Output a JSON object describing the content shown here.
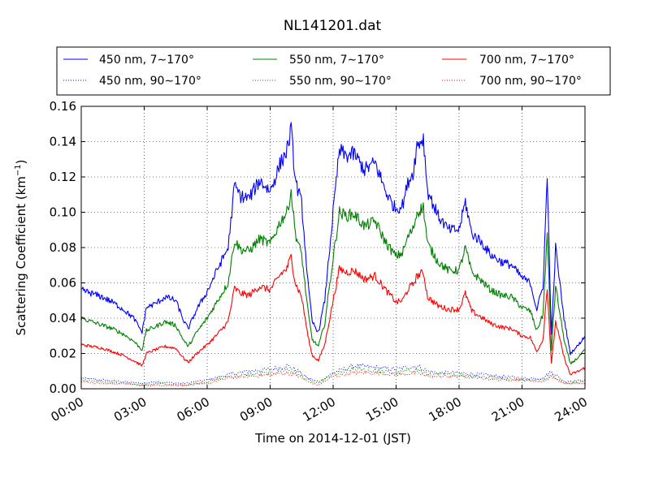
{
  "chart_data": {
    "type": "line",
    "title": "NL141201.dat",
    "xlabel": "Time on 2014-12-01 (JST)",
    "ylabel": "Scattering Coefficient (km",
    "ylabel_exp": "−1",
    "ylabel_close": ")",
    "xlim": [
      0,
      24
    ],
    "ylim": [
      0,
      0.16
    ],
    "grid": true,
    "legend_position": "top",
    "x_ticks": [
      0,
      3,
      6,
      9,
      12,
      15,
      18,
      21,
      24
    ],
    "x_tick_labels": [
      "00:00",
      "03:00",
      "06:00",
      "09:00",
      "12:00",
      "15:00",
      "18:00",
      "21:00",
      "24:00"
    ],
    "y_ticks": [
      0,
      0.02,
      0.04,
      0.06,
      0.08,
      0.1,
      0.12,
      0.14,
      0.16
    ],
    "y_tick_labels": [
      "0.00",
      "0.02",
      "0.04",
      "0.06",
      "0.08",
      "0.10",
      "0.12",
      "0.14",
      "0.16"
    ],
    "series": [
      {
        "name": "450 nm, 7∼170°",
        "color": "#0000ff",
        "style": "solid",
        "x": [
          0,
          0.5,
          1,
          1.5,
          2,
          2.5,
          2.9,
          3.1,
          3.5,
          4,
          4.5,
          4.9,
          5.1,
          5.5,
          6,
          6.5,
          7,
          7.3,
          7.6,
          8,
          8.5,
          9,
          9.5,
          9.8,
          10,
          10.2,
          10.5,
          10.8,
          11,
          11.3,
          11.6,
          12,
          12.3,
          12.6,
          13,
          13.5,
          14,
          14.5,
          14.8,
          15,
          15.3,
          15.6,
          15.8,
          16,
          16.3,
          16.5,
          17,
          17.5,
          18,
          18.3,
          18.6,
          19,
          19.5,
          20,
          20.5,
          21,
          21.4,
          21.7,
          22,
          22.2,
          22.4,
          22.6,
          23,
          23.3,
          23.7,
          24
        ],
        "y": [
          0.056,
          0.054,
          0.052,
          0.049,
          0.045,
          0.04,
          0.032,
          0.046,
          0.048,
          0.052,
          0.05,
          0.038,
          0.034,
          0.045,
          0.055,
          0.068,
          0.08,
          0.115,
          0.109,
          0.108,
          0.118,
          0.112,
          0.128,
          0.135,
          0.147,
          0.118,
          0.105,
          0.06,
          0.038,
          0.032,
          0.05,
          0.1,
          0.135,
          0.132,
          0.133,
          0.124,
          0.128,
          0.112,
          0.105,
          0.102,
          0.104,
          0.118,
          0.122,
          0.138,
          0.142,
          0.112,
          0.098,
          0.09,
          0.09,
          0.106,
          0.088,
          0.084,
          0.076,
          0.072,
          0.07,
          0.063,
          0.06,
          0.045,
          0.058,
          0.12,
          0.03,
          0.08,
          0.04,
          0.02,
          0.025,
          0.03
        ]
      },
      {
        "name": "550 nm, 7∼170°",
        "color": "#008000",
        "style": "solid",
        "x": [
          0,
          0.5,
          1,
          1.5,
          2,
          2.5,
          2.9,
          3.1,
          3.5,
          4,
          4.5,
          4.9,
          5.1,
          5.5,
          6,
          6.5,
          7,
          7.3,
          7.6,
          8,
          8.5,
          9,
          9.5,
          9.8,
          10,
          10.2,
          10.5,
          10.8,
          11,
          11.3,
          11.6,
          12,
          12.3,
          12.6,
          13,
          13.5,
          14,
          14.5,
          14.8,
          15,
          15.3,
          15.6,
          15.8,
          16,
          16.3,
          16.5,
          17,
          17.5,
          18,
          18.3,
          18.6,
          19,
          19.5,
          20,
          20.5,
          21,
          21.4,
          21.7,
          22,
          22.2,
          22.4,
          22.6,
          23,
          23.3,
          23.7,
          24
        ],
        "y": [
          0.04,
          0.038,
          0.036,
          0.034,
          0.031,
          0.027,
          0.022,
          0.033,
          0.035,
          0.038,
          0.036,
          0.027,
          0.024,
          0.032,
          0.04,
          0.05,
          0.06,
          0.084,
          0.079,
          0.078,
          0.085,
          0.082,
          0.095,
          0.1,
          0.112,
          0.088,
          0.076,
          0.044,
          0.028,
          0.024,
          0.037,
          0.074,
          0.1,
          0.098,
          0.099,
          0.092,
          0.095,
          0.083,
          0.078,
          0.075,
          0.077,
          0.087,
          0.09,
          0.1,
          0.103,
          0.082,
          0.072,
          0.067,
          0.067,
          0.08,
          0.066,
          0.062,
          0.056,
          0.053,
          0.052,
          0.046,
          0.044,
          0.033,
          0.042,
          0.088,
          0.022,
          0.058,
          0.028,
          0.014,
          0.018,
          0.022
        ]
      },
      {
        "name": "700 nm, 7∼170°",
        "color": "#ff0000",
        "style": "solid",
        "x": [
          0,
          0.5,
          1,
          1.5,
          2,
          2.5,
          2.9,
          3.1,
          3.5,
          4,
          4.5,
          4.9,
          5.1,
          5.5,
          6,
          6.5,
          7,
          7.3,
          7.6,
          8,
          8.5,
          9,
          9.5,
          9.8,
          10,
          10.2,
          10.5,
          10.8,
          11,
          11.3,
          11.6,
          12,
          12.3,
          12.6,
          13,
          13.5,
          14,
          14.5,
          14.8,
          15,
          15.3,
          15.6,
          15.8,
          16,
          16.3,
          16.5,
          17,
          17.5,
          18,
          18.3,
          18.6,
          19,
          19.5,
          20,
          20.5,
          21,
          21.4,
          21.7,
          22,
          22.2,
          22.4,
          22.6,
          23,
          23.3,
          23.7,
          24
        ],
        "y": [
          0.025,
          0.024,
          0.023,
          0.021,
          0.019,
          0.016,
          0.013,
          0.02,
          0.022,
          0.024,
          0.023,
          0.017,
          0.015,
          0.02,
          0.025,
          0.031,
          0.038,
          0.057,
          0.054,
          0.053,
          0.058,
          0.056,
          0.065,
          0.068,
          0.075,
          0.06,
          0.052,
          0.03,
          0.019,
          0.016,
          0.025,
          0.05,
          0.068,
          0.066,
          0.067,
          0.062,
          0.064,
          0.056,
          0.052,
          0.049,
          0.05,
          0.057,
          0.059,
          0.064,
          0.066,
          0.052,
          0.047,
          0.045,
          0.045,
          0.054,
          0.044,
          0.041,
          0.037,
          0.035,
          0.034,
          0.03,
          0.029,
          0.021,
          0.028,
          0.058,
          0.014,
          0.038,
          0.018,
          0.008,
          0.01,
          0.012
        ]
      },
      {
        "name": "450 nm, 90∼170°",
        "color": "#0000ff",
        "style": "dotted",
        "x": [
          0,
          1,
          2,
          2.9,
          3.5,
          4.9,
          6,
          7,
          8,
          9,
          9.8,
          10.2,
          10.8,
          11.3,
          12,
          13,
          14,
          15,
          16,
          16.5,
          17,
          18,
          19,
          20,
          21,
          22,
          22.4,
          23,
          24
        ],
        "y": [
          0.006,
          0.005,
          0.004,
          0.003,
          0.004,
          0.003,
          0.005,
          0.008,
          0.01,
          0.011,
          0.013,
          0.011,
          0.006,
          0.004,
          0.009,
          0.013,
          0.012,
          0.011,
          0.013,
          0.01,
          0.009,
          0.009,
          0.008,
          0.007,
          0.006,
          0.006,
          0.01,
          0.004,
          0.005
        ]
      },
      {
        "name": "550 nm, 90∼170°",
        "color": "#008000",
        "style": "dotted",
        "x": [
          0,
          1,
          2,
          2.9,
          3.5,
          4.9,
          6,
          7,
          8,
          9,
          9.8,
          10.2,
          10.8,
          11.3,
          12,
          13,
          14,
          15,
          16,
          16.5,
          17,
          18,
          19,
          20,
          21,
          22,
          22.4,
          23,
          24
        ],
        "y": [
          0.005,
          0.004,
          0.003,
          0.002,
          0.003,
          0.002,
          0.004,
          0.007,
          0.008,
          0.009,
          0.011,
          0.009,
          0.005,
          0.003,
          0.008,
          0.011,
          0.01,
          0.009,
          0.011,
          0.008,
          0.008,
          0.008,
          0.007,
          0.006,
          0.005,
          0.005,
          0.008,
          0.003,
          0.004
        ]
      },
      {
        "name": "700 nm, 90∼170°",
        "color": "#ff0000",
        "style": "dotted",
        "x": [
          0,
          1,
          2,
          2.9,
          3.5,
          4.9,
          6,
          7,
          8,
          9,
          9.8,
          10.2,
          10.8,
          11.3,
          12,
          13,
          14,
          15,
          16,
          16.5,
          17,
          18,
          19,
          20,
          21,
          22,
          22.4,
          23,
          24
        ],
        "y": [
          0.004,
          0.003,
          0.003,
          0.002,
          0.002,
          0.002,
          0.003,
          0.006,
          0.007,
          0.008,
          0.009,
          0.008,
          0.004,
          0.002,
          0.007,
          0.009,
          0.009,
          0.008,
          0.009,
          0.007,
          0.007,
          0.007,
          0.006,
          0.005,
          0.005,
          0.004,
          0.007,
          0.003,
          0.003
        ]
      }
    ]
  }
}
